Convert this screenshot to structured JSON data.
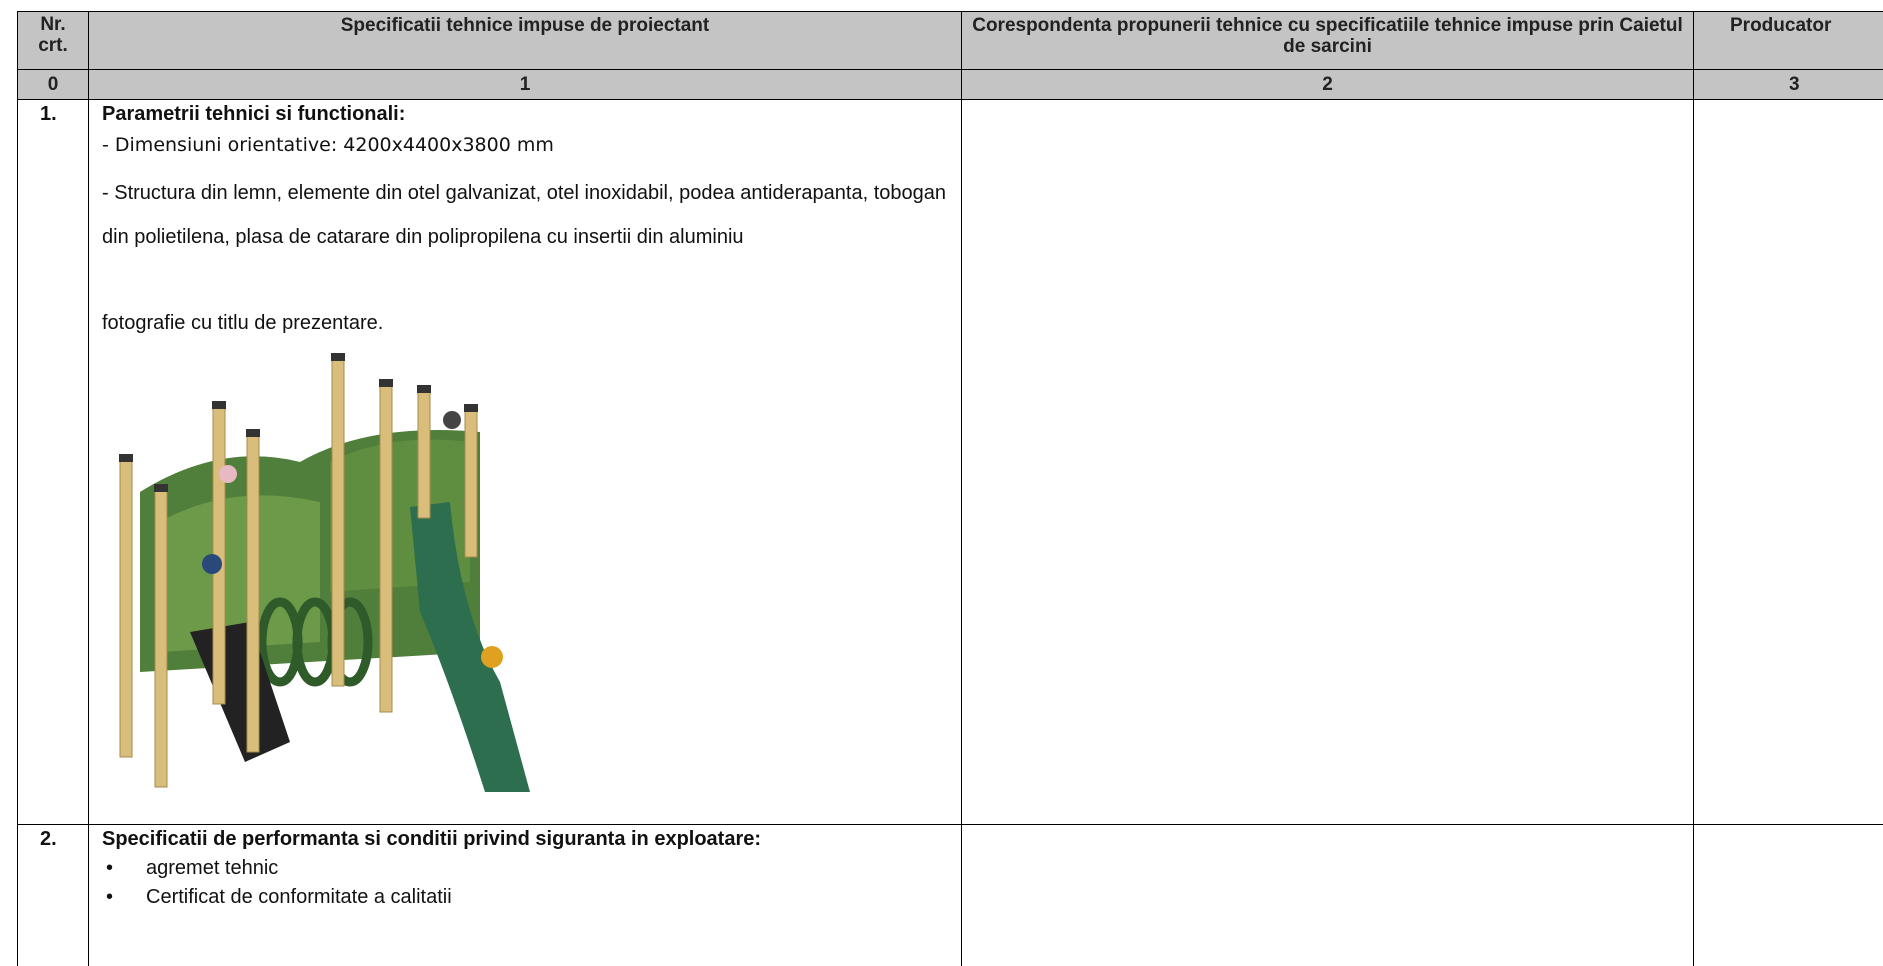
{
  "header": {
    "columns": [
      "Nr. crt.",
      "Specificatii tehnice impuse de proiectant",
      "Corespondenta propunerii tehnice cu specificatiile tehnice impuse prin Caietul de sarcini",
      "Producator"
    ],
    "numbers": [
      "0",
      "1",
      "2",
      "3"
    ]
  },
  "rows": [
    {
      "number": "1.",
      "title": "Parametrii tehnici si functionali:",
      "dimensions": "- Dimensiuni orientative: 4200x4400x3800 mm",
      "structure": "- Structura din lemn, elemente din otel galvanizat, otel inoxidabil, podea antiderapanta, tobogan din polietilena, plasa de catarare din polipropilena cu insertii din aluminiu",
      "photo_note": "fotografie cu titlu de prezentare."
    },
    {
      "number": "2.",
      "title": "Specificatii de performanta si conditii privind siguranta in exploatare:",
      "bullets": [
        "agremet tehnic",
        "Certificat de conformitate a calitatii"
      ]
    }
  ]
}
